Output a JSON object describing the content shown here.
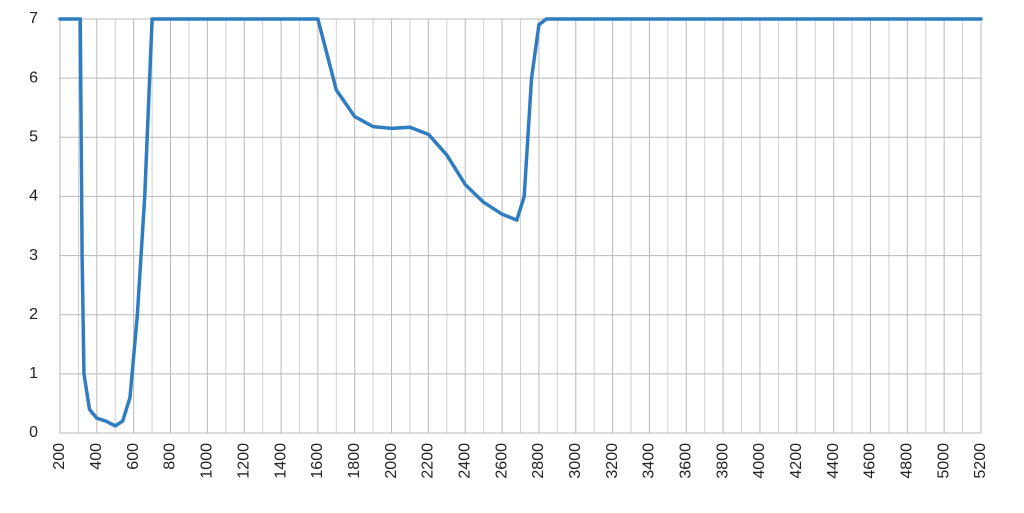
{
  "chart_data": {
    "type": "line",
    "x": [
      200,
      310,
      320,
      330,
      360,
      400,
      450,
      500,
      540,
      580,
      620,
      660,
      700,
      1600,
      1700,
      1800,
      1900,
      2000,
      2100,
      2200,
      2300,
      2400,
      2500,
      2600,
      2680,
      2720,
      2760,
      2800,
      2840,
      5200
    ],
    "series": [
      {
        "color": "#2f7dc0",
        "values": [
          7,
          7,
          3,
          1,
          0.4,
          0.25,
          0.2,
          0.12,
          0.2,
          0.6,
          2,
          4,
          7,
          7,
          5.8,
          5.35,
          5.18,
          5.15,
          5.17,
          5.05,
          4.7,
          4.2,
          3.9,
          3.7,
          3.6,
          4.0,
          6,
          6.9,
          7,
          7
        ]
      }
    ],
    "xlim": [
      200,
      5200
    ],
    "xticks": [
      200,
      400,
      600,
      800,
      1000,
      1200,
      1400,
      1600,
      1800,
      2000,
      2200,
      2400,
      2600,
      2800,
      3000,
      3200,
      3400,
      3600,
      3800,
      4000,
      4200,
      4400,
      4600,
      4800,
      5000,
      5200
    ],
    "ylim": [
      0,
      7
    ],
    "yticks": [
      0,
      1,
      2,
      3,
      4,
      5,
      6,
      7
    ],
    "grid": true,
    "minor_grid": true
  }
}
